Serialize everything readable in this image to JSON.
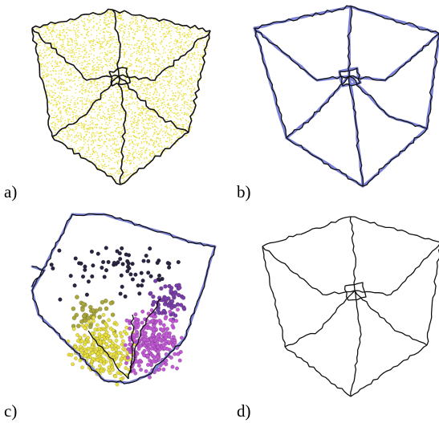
{
  "figure": {
    "panels": [
      {
        "id": "a",
        "label": "a)"
      },
      {
        "id": "b",
        "label": "b)"
      },
      {
        "id": "c",
        "label": "c)"
      },
      {
        "id": "d",
        "label": "d)"
      }
    ],
    "colors": {
      "edge": "#111111",
      "skeleton_blue": "#7b82d8",
      "points_yellow": "#e9e040",
      "points_olive": "#a8a63c",
      "points_magenta": "#c25ad6",
      "points_purple": "#7a3fa8",
      "points_dark": "#2a2440"
    }
  }
}
